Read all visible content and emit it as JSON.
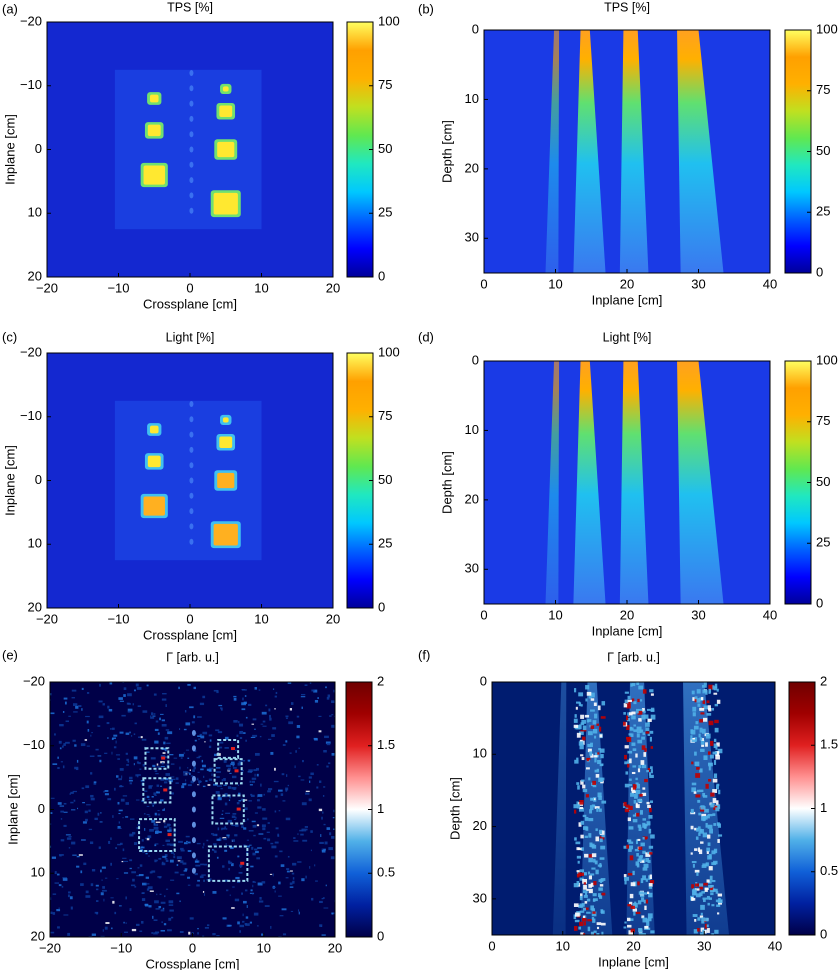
{
  "chart_data": [
    {
      "type": "heatmap",
      "panel": "(a)",
      "title": "TPS [%]",
      "xlabel": "Crossplane [cm]",
      "ylabel": "Inplane [cm]",
      "xlim": [
        -20,
        20
      ],
      "ylim": [
        -20,
        20
      ],
      "yreverse": true,
      "xticks": [
        {
          "value": -20,
          "label": "−20"
        },
        {
          "value": -10,
          "label": "−10"
        },
        0,
        10,
        20
      ],
      "yticks": [
        {
          "value": -20,
          "label": "−20"
        },
        {
          "value": -10,
          "label": "−10"
        },
        0,
        10,
        20
      ],
      "clim": [
        0,
        100
      ],
      "cticks": [
        0,
        25,
        50,
        75,
        100
      ],
      "colormap": [
        "#00009a",
        "#0000ff",
        "#0060ff",
        "#00c8ff",
        "#20e8c0",
        "#60e850",
        "#c0e020",
        "#ffb000",
        "#ffa000",
        "#ffff60"
      ]
    },
    {
      "type": "heatmap",
      "panel": "(b)",
      "title": "TPS [%]",
      "xlabel": "Inplane [cm]",
      "ylabel": "Depth [cm]",
      "xlim": [
        0,
        40
      ],
      "ylim": [
        0,
        35
      ],
      "yreverse": true,
      "xticks": [
        0,
        10,
        20,
        30,
        40
      ],
      "yticks": [
        0,
        10,
        20,
        30
      ],
      "clim": [
        0,
        100
      ],
      "cticks": [
        0,
        25,
        50,
        75,
        100
      ],
      "colormap": [
        "#00009a",
        "#0000ff",
        "#0060ff",
        "#00c8ff",
        "#20e8c0",
        "#60e850",
        "#c0e020",
        "#ffb000",
        "#ffa000",
        "#ffff60"
      ]
    },
    {
      "type": "heatmap",
      "panel": "(c)",
      "title": "Light [%]",
      "xlabel": "Crossplane [cm]",
      "ylabel": "Inplane [cm]",
      "xlim": [
        -20,
        20
      ],
      "ylim": [
        -20,
        20
      ],
      "yreverse": true,
      "xticks": [
        {
          "value": -20,
          "label": "−20"
        },
        {
          "value": -10,
          "label": "−10"
        },
        0,
        10,
        20
      ],
      "yticks": [
        {
          "value": -20,
          "label": "−20"
        },
        {
          "value": -10,
          "label": "−10"
        },
        0,
        10,
        20
      ],
      "clim": [
        0,
        100
      ],
      "cticks": [
        0,
        25,
        50,
        75,
        100
      ],
      "colormap": [
        "#00009a",
        "#0000ff",
        "#0060ff",
        "#00c8ff",
        "#20e8c0",
        "#60e850",
        "#c0e020",
        "#ffb000",
        "#ffa000",
        "#ffff60"
      ]
    },
    {
      "type": "heatmap",
      "panel": "(d)",
      "title": "Light [%]",
      "xlabel": "Inplane [cm]",
      "ylabel": "Depth [cm]",
      "xlim": [
        0,
        40
      ],
      "ylim": [
        0,
        35
      ],
      "yreverse": true,
      "xticks": [
        0,
        10,
        20,
        30,
        40
      ],
      "yticks": [
        0,
        10,
        20,
        30
      ],
      "clim": [
        0,
        100
      ],
      "cticks": [
        0,
        25,
        50,
        75,
        100
      ],
      "colormap": [
        "#00009a",
        "#0000ff",
        "#0060ff",
        "#00c8ff",
        "#20e8c0",
        "#60e850",
        "#c0e020",
        "#ffb000",
        "#ffa000",
        "#ffff60"
      ]
    },
    {
      "type": "heatmap",
      "panel": "(e)",
      "title": "Γ [arb. u.]",
      "xlabel": "Crossplane [cm]",
      "ylabel": "Inplane [cm]",
      "xlim": [
        -20,
        20
      ],
      "ylim": [
        -20,
        20
      ],
      "yreverse": true,
      "xticks": [
        {
          "value": -20,
          "label": "−20"
        },
        {
          "value": -10,
          "label": "−10"
        },
        0,
        10,
        20
      ],
      "yticks": [
        {
          "value": -20,
          "label": "−20"
        },
        {
          "value": -10,
          "label": "−10"
        },
        0,
        10,
        20
      ],
      "clim": [
        0,
        2
      ],
      "cticks": [
        0,
        0.5,
        1,
        1.5,
        2
      ],
      "colormap": [
        "#000048",
        "#0020a0",
        "#1060d8",
        "#50b0e8",
        "#ffffff",
        "#ff9090",
        "#e02020",
        "#a00000",
        "#700000"
      ]
    },
    {
      "type": "heatmap",
      "panel": "(f)",
      "title": "Γ [arb. u.]",
      "xlabel": "Inplane [cm]",
      "ylabel": "Depth [cm]",
      "xlim": [
        0,
        40
      ],
      "ylim": [
        0,
        35
      ],
      "yreverse": true,
      "xticks": [
        0,
        10,
        20,
        30,
        40
      ],
      "yticks": [
        0,
        10,
        20,
        30
      ],
      "clim": [
        0,
        2
      ],
      "cticks": [
        0,
        0.5,
        1,
        1.5,
        2
      ],
      "colormap": [
        "#000048",
        "#0020a0",
        "#1060d8",
        "#50b0e8",
        "#ffffff",
        "#ff9090",
        "#e02020",
        "#a00000",
        "#700000"
      ]
    }
  ]
}
